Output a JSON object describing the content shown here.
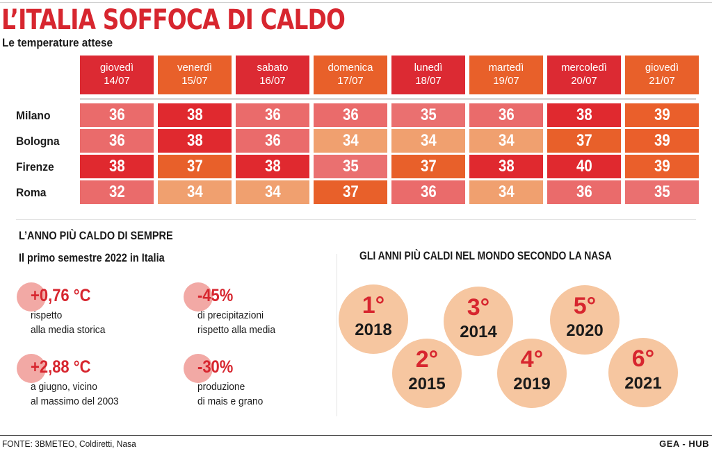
{
  "title": "L’ITALIA SOFFOCA DI CALDO",
  "subtitle": "Le temperature attese",
  "days": [
    {
      "day": "giovedì",
      "date": "14/07"
    },
    {
      "day": "venerdì",
      "date": "15/07"
    },
    {
      "day": "sabato",
      "date": "16/07"
    },
    {
      "day": "domenica",
      "date": "17/07"
    },
    {
      "day": "lunedì",
      "date": "18/07"
    },
    {
      "day": "martedì",
      "date": "19/07"
    },
    {
      "day": "mercoledì",
      "date": "20/07"
    },
    {
      "day": "giovedì",
      "date": "21/07"
    }
  ],
  "rows": [
    {
      "city": "Milano",
      "temps": [
        "36",
        "38",
        "36",
        "36",
        "35",
        "36",
        "38",
        "39"
      ]
    },
    {
      "city": "Bologna",
      "temps": [
        "36",
        "38",
        "36",
        "34",
        "34",
        "34",
        "37",
        "39"
      ]
    },
    {
      "city": "Firenze",
      "temps": [
        "38",
        "37",
        "38",
        "35",
        "37",
        "38",
        "40",
        "39"
      ]
    },
    {
      "city": "Roma",
      "temps": [
        "32",
        "34",
        "34",
        "37",
        "36",
        "34",
        "36",
        "35"
      ]
    }
  ],
  "colors": {
    "accent": "#d7262f",
    "header_red": "#dc2a33",
    "header_orange": "#e8602a",
    "temp_scale": {
      "32": "#ea6b6b",
      "34": "#f0a06f",
      "35": "#ea7070",
      "36": "#ea6b6b",
      "37": "#e8602a",
      "38": "#e0292f",
      "39": "#ea5f2b",
      "40": "#e0292f"
    },
    "stat_dot": "#f2a9a5",
    "year_circle": "#f6c6a0"
  },
  "section": {
    "title": "L’ANNO PIÙ CALDO DI SEMPRE",
    "subtitle": "Il primo semestre 2022 in Italia"
  },
  "stats": [
    {
      "value": "+0,76 °C",
      "line1": "rispetto",
      "line2": "alla media storica"
    },
    {
      "value": "-45%",
      "line1": "di precipitazioni",
      "line2": "rispetto alla media"
    },
    {
      "value": "+2,88 °C",
      "line1": "a giugno, vicino",
      "line2": "al massimo del 2003"
    },
    {
      "value": "-30%",
      "line1": "produzione",
      "line2": "di mais e grano"
    }
  ],
  "nasa": {
    "title": "GLI ANNI PIÙ CALDI NEL MONDO SECONDO LA NASA",
    "years": [
      {
        "rank": "1°",
        "year": "2018"
      },
      {
        "rank": "2°",
        "year": "2015"
      },
      {
        "rank": "3°",
        "year": "2014"
      },
      {
        "rank": "4°",
        "year": "2019"
      },
      {
        "rank": "5°",
        "year": "2020"
      },
      {
        "rank": "6°",
        "year": "2021"
      }
    ]
  },
  "footer": {
    "source": "FONTE: 3BMETEO, Coldiretti, Nasa",
    "brand": "GEA - HUB"
  }
}
